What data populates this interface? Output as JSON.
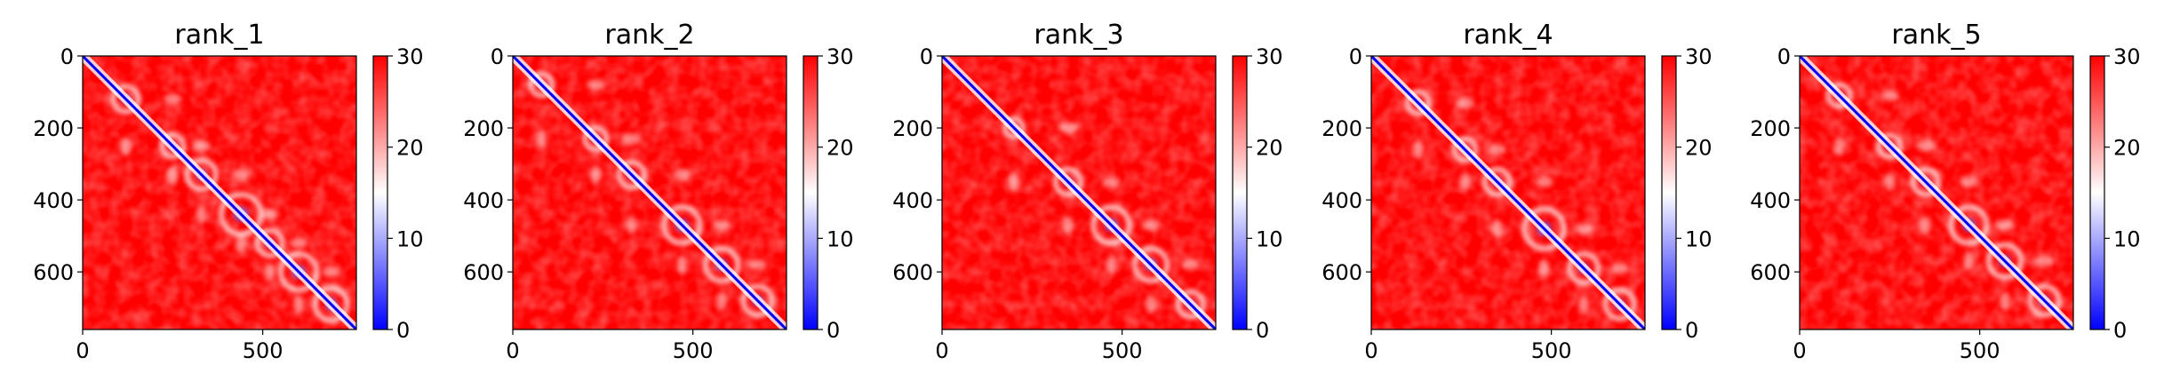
{
  "chart_data": [
    {
      "type": "heatmap",
      "title": "rank_1",
      "xlim": [
        0,
        760
      ],
      "ylim": [
        760,
        0
      ],
      "x_ticks": [
        0,
        500
      ],
      "y_ticks": [
        0,
        200,
        400,
        600
      ],
      "colorbar": {
        "min": 0,
        "max": 30,
        "ticks": [
          0,
          10,
          20,
          30
        ],
        "colors": [
          "#0000ff",
          "#ffffff",
          "#ff0000"
        ]
      },
      "diagonal_features": [
        {
          "pos": 120,
          "r": 35
        },
        {
          "pos": 250,
          "r": 30
        },
        {
          "pos": 330,
          "r": 40
        },
        {
          "pos": 440,
          "r": 55
        },
        {
          "pos": 520,
          "r": 35
        },
        {
          "pos": 600,
          "r": 50
        },
        {
          "pos": 690,
          "r": 45
        }
      ]
    },
    {
      "type": "heatmap",
      "title": "rank_2",
      "xlim": [
        0,
        760
      ],
      "ylim": [
        760,
        0
      ],
      "x_ticks": [
        0,
        500
      ],
      "y_ticks": [
        0,
        200,
        400,
        600
      ],
      "colorbar": {
        "min": 0,
        "max": 30,
        "ticks": [
          0,
          10,
          20,
          30
        ],
        "colors": [
          "#0000ff",
          "#ffffff",
          "#ff0000"
        ]
      },
      "diagonal_features": [
        {
          "pos": 80,
          "r": 30
        },
        {
          "pos": 230,
          "r": 30
        },
        {
          "pos": 330,
          "r": 35
        },
        {
          "pos": 470,
          "r": 50
        },
        {
          "pos": 580,
          "r": 45
        },
        {
          "pos": 680,
          "r": 40
        }
      ]
    },
    {
      "type": "heatmap",
      "title": "rank_3",
      "xlim": [
        0,
        760
      ],
      "ylim": [
        760,
        0
      ],
      "x_ticks": [
        0,
        500
      ],
      "y_ticks": [
        0,
        200,
        400,
        600
      ],
      "colorbar": {
        "min": 0,
        "max": 30,
        "ticks": [
          0,
          10,
          20,
          30
        ],
        "colors": [
          "#0000ff",
          "#ffffff",
          "#ff0000"
        ]
      },
      "diagonal_features": [
        {
          "pos": 200,
          "r": 25
        },
        {
          "pos": 350,
          "r": 35
        },
        {
          "pos": 470,
          "r": 50
        },
        {
          "pos": 580,
          "r": 45
        },
        {
          "pos": 690,
          "r": 35
        }
      ]
    },
    {
      "type": "heatmap",
      "title": "rank_4",
      "xlim": [
        0,
        760
      ],
      "ylim": [
        760,
        0
      ],
      "x_ticks": [
        0,
        500
      ],
      "y_ticks": [
        0,
        200,
        400,
        600
      ],
      "colorbar": {
        "min": 0,
        "max": 30,
        "ticks": [
          0,
          10,
          20,
          30
        ],
        "colors": [
          "#0000ff",
          "#ffffff",
          "#ff0000"
        ]
      },
      "diagonal_features": [
        {
          "pos": 130,
          "r": 30
        },
        {
          "pos": 260,
          "r": 30
        },
        {
          "pos": 350,
          "r": 35
        },
        {
          "pos": 480,
          "r": 55
        },
        {
          "pos": 590,
          "r": 40
        },
        {
          "pos": 690,
          "r": 40
        }
      ]
    },
    {
      "type": "heatmap",
      "title": "rank_5",
      "xlim": [
        0,
        760
      ],
      "ylim": [
        760,
        0
      ],
      "x_ticks": [
        0,
        500
      ],
      "y_ticks": [
        0,
        200,
        400,
        600
      ],
      "colorbar": {
        "min": 0,
        "max": 30,
        "ticks": [
          0,
          10,
          20,
          30
        ],
        "colors": [
          "#0000ff",
          "#ffffff",
          "#ff0000"
        ]
      },
      "diagonal_features": [
        {
          "pos": 110,
          "r": 30
        },
        {
          "pos": 250,
          "r": 30
        },
        {
          "pos": 350,
          "r": 35
        },
        {
          "pos": 470,
          "r": 50
        },
        {
          "pos": 570,
          "r": 45
        },
        {
          "pos": 680,
          "r": 40
        }
      ]
    }
  ]
}
